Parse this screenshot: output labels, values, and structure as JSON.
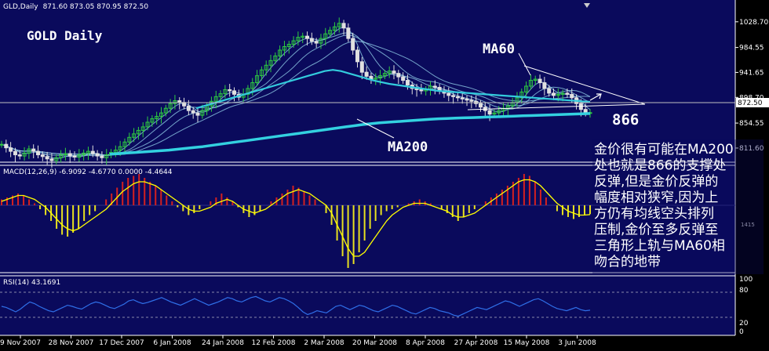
{
  "colors": {
    "background": "#0a0a5c",
    "axis_panel": "#000000",
    "bull_bar": "#2ecc40",
    "bear_bar": "#e0e0e0",
    "ma_lines": "#8ecbe6",
    "ma60": "#33ccdd",
    "ma200": "#33d1e0",
    "macd_pos": "#d42020",
    "macd_neg": "#e8e020",
    "signal": "#ffff00",
    "rsi": "#2f6fe8",
    "trendline": "#ffffff",
    "grid": "#8888aa"
  },
  "header": {
    "symbol": "GLD,Daily",
    "ohlc": "871.60 873.05 870.95 872.50",
    "macd": "MACD(12,26,9) -6.9092 -4.6770 0.0000 -4.4644",
    "rsi": "RSI(14) 43.1691"
  },
  "labels": {
    "title": "GOLD Daily",
    "ma60": "MA60",
    "ma200": "MA200",
    "level": "866",
    "current_price": "872.50",
    "macd_scale_partial": "1415"
  },
  "annotation": [
    "金价很有可能在MA200",
    "处也就是866的支撑处",
    "反弹,但是金价反弹的",
    "幅度相对狭窄,因为上",
    "方仍有均线空头排列",
    "压制,金价至多反弹至",
    "三角形上轨与MA60相",
    "吻合的地带"
  ],
  "chart_data": {
    "type": "line",
    "price_axis_ticks": [
      "1028.70",
      "984.55",
      "941.65",
      "898.70",
      "854.55",
      "811.60"
    ],
    "rsi_axis_ticks": [
      "100",
      "80",
      "20",
      "0"
    ],
    "x_ticks": [
      "9 Nov 2007",
      "28 Nov 2007",
      "17 Dec 2007",
      "6 Jan 2008",
      "24 Jan 2008",
      "12 Feb 2008",
      "2 Mar 2008",
      "20 Mar 2008",
      "8 Apr 2008",
      "27 Apr 2008",
      "15 May 2008",
      "3 Jun 2008"
    ],
    "price_ylim": [
      790,
      1050
    ],
    "price_close": [
      818,
      812,
      806,
      800,
      798,
      803,
      810,
      806,
      800,
      797,
      793,
      790,
      795,
      800,
      802,
      798,
      796,
      800,
      803,
      806,
      802,
      798,
      795,
      800,
      804,
      808,
      814,
      822,
      830,
      836,
      842,
      848,
      856,
      862,
      866,
      872,
      880,
      888,
      893,
      890,
      884,
      876,
      872,
      868,
      876,
      884,
      892,
      900,
      905,
      912,
      910,
      904,
      899,
      904,
      914,
      924,
      936,
      946,
      954,
      962,
      970,
      980,
      986,
      990,
      996,
      1002,
      1004,
      1000,
      995,
      992,
      1000,
      1008,
      1014,
      1020,
      1026,
      1018,
      1000,
      980,
      960,
      942,
      935,
      930,
      932,
      936,
      940,
      944,
      940,
      934,
      928,
      920,
      914,
      912,
      910,
      912,
      918,
      916,
      910,
      906,
      902,
      900,
      898,
      896,
      894,
      892,
      888,
      882,
      876,
      870,
      872,
      876,
      880,
      884,
      890,
      898,
      908,
      918,
      928,
      930,
      924,
      914,
      906,
      902,
      904,
      906,
      904,
      898,
      888,
      878,
      872,
      872.5
    ],
    "ma200": [
      801,
      802,
      803,
      804,
      805,
      806,
      807,
      808,
      809.5,
      811,
      812.5,
      814,
      816,
      818,
      820,
      822,
      824,
      826,
      828,
      830,
      832,
      834,
      836,
      838,
      840,
      842,
      844,
      846,
      848,
      850,
      852,
      853.5,
      855,
      856,
      857,
      858,
      859,
      860,
      861,
      862,
      862.5,
      863,
      863.5,
      864,
      864.5,
      865,
      865.5,
      866,
      866.5,
      867,
      867.5,
      868,
      868.5,
      869,
      869.5,
      870,
      870.5,
      871
    ],
    "ma60": [
      880,
      884,
      888,
      892,
      896,
      900,
      904,
      908,
      912,
      916,
      920,
      924,
      928,
      932,
      936,
      940,
      944,
      946,
      944,
      940,
      936,
      932,
      928,
      925,
      922,
      920,
      918,
      916,
      914,
      912,
      910,
      909,
      908,
      907,
      906,
      905,
      904,
      903,
      902,
      901,
      900,
      899,
      898,
      897,
      896,
      895,
      894,
      893,
      892,
      891
    ],
    "macd_hist": [
      3,
      4,
      5,
      6,
      5,
      3,
      1,
      -2,
      -5,
      -8,
      -12,
      -15,
      -16,
      -14,
      -12,
      -8,
      -5,
      -3,
      0,
      3,
      6,
      9,
      12,
      14,
      15,
      16,
      14,
      12,
      10,
      8,
      5,
      2,
      -1,
      -3,
      -5,
      -4,
      -2,
      0,
      2,
      4,
      6,
      4,
      2,
      -1,
      -4,
      -6,
      -5,
      -3,
      0,
      2,
      4,
      6,
      8,
      10,
      9,
      7,
      5,
      3,
      0,
      -4,
      -10,
      -18,
      -26,
      -32,
      -30,
      -24,
      -18,
      -12,
      -8,
      -5,
      -3,
      -2,
      -1,
      0,
      1,
      2,
      3,
      2,
      1,
      0,
      -2,
      -4,
      -6,
      -8,
      -6,
      -4,
      -2,
      0,
      2,
      4,
      6,
      8,
      10,
      12,
      14,
      16,
      15,
      12,
      8,
      4,
      0,
      -3,
      -5,
      -6,
      -7,
      -6,
      -5,
      -4.5
    ],
    "macd_signal": [
      2,
      3,
      4,
      5,
      5,
      4,
      3,
      1,
      -1,
      -4,
      -7,
      -10,
      -12,
      -13,
      -12,
      -10,
      -8,
      -6,
      -4,
      -2,
      1,
      4,
      7,
      9,
      11,
      12,
      12,
      11,
      10,
      8,
      6,
      4,
      2,
      0,
      -2,
      -3,
      -3,
      -2,
      -1,
      1,
      2,
      3,
      2,
      0,
      -2,
      -3,
      -4,
      -3,
      -2,
      0,
      2,
      4,
      6,
      7,
      8,
      7,
      6,
      4,
      2,
      0,
      -4,
      -10,
      -16,
      -22,
      -26,
      -26,
      -24,
      -20,
      -16,
      -12,
      -8,
      -5,
      -3,
      -1,
      0,
      1,
      1,
      1,
      0,
      -1,
      -2,
      -3,
      -5,
      -6,
      -6,
      -5,
      -4,
      -2,
      0,
      2,
      4,
      6,
      8,
      10,
      12,
      13,
      13,
      12,
      10,
      7,
      4,
      1,
      -1,
      -3,
      -4,
      -5,
      -5,
      -4.7
    ],
    "rsi": [
      50,
      48,
      44,
      40,
      45,
      52,
      58,
      55,
      50,
      46,
      42,
      40,
      44,
      48,
      52,
      50,
      47,
      45,
      50,
      55,
      58,
      56,
      52,
      48,
      46,
      50,
      54,
      60,
      62,
      58,
      55,
      57,
      60,
      63,
      66,
      62,
      58,
      55,
      52,
      56,
      60,
      64,
      60,
      56,
      52,
      55,
      58,
      62,
      66,
      64,
      60,
      58,
      62,
      66,
      68,
      64,
      60,
      58,
      62,
      66,
      64,
      60,
      55,
      48,
      40,
      35,
      38,
      42,
      40,
      38,
      44,
      50,
      52,
      48,
      44,
      48,
      52,
      50,
      46,
      42,
      40,
      44,
      48,
      52,
      50,
      46,
      42,
      38,
      36,
      40,
      44,
      48,
      46,
      42,
      40,
      38,
      34,
      32,
      36,
      40,
      44,
      48,
      46,
      44,
      48,
      52,
      56,
      60,
      58,
      54,
      50,
      54,
      58,
      62,
      64,
      60,
      55,
      50,
      46,
      44,
      42,
      45,
      48,
      44,
      42,
      43
    ]
  }
}
